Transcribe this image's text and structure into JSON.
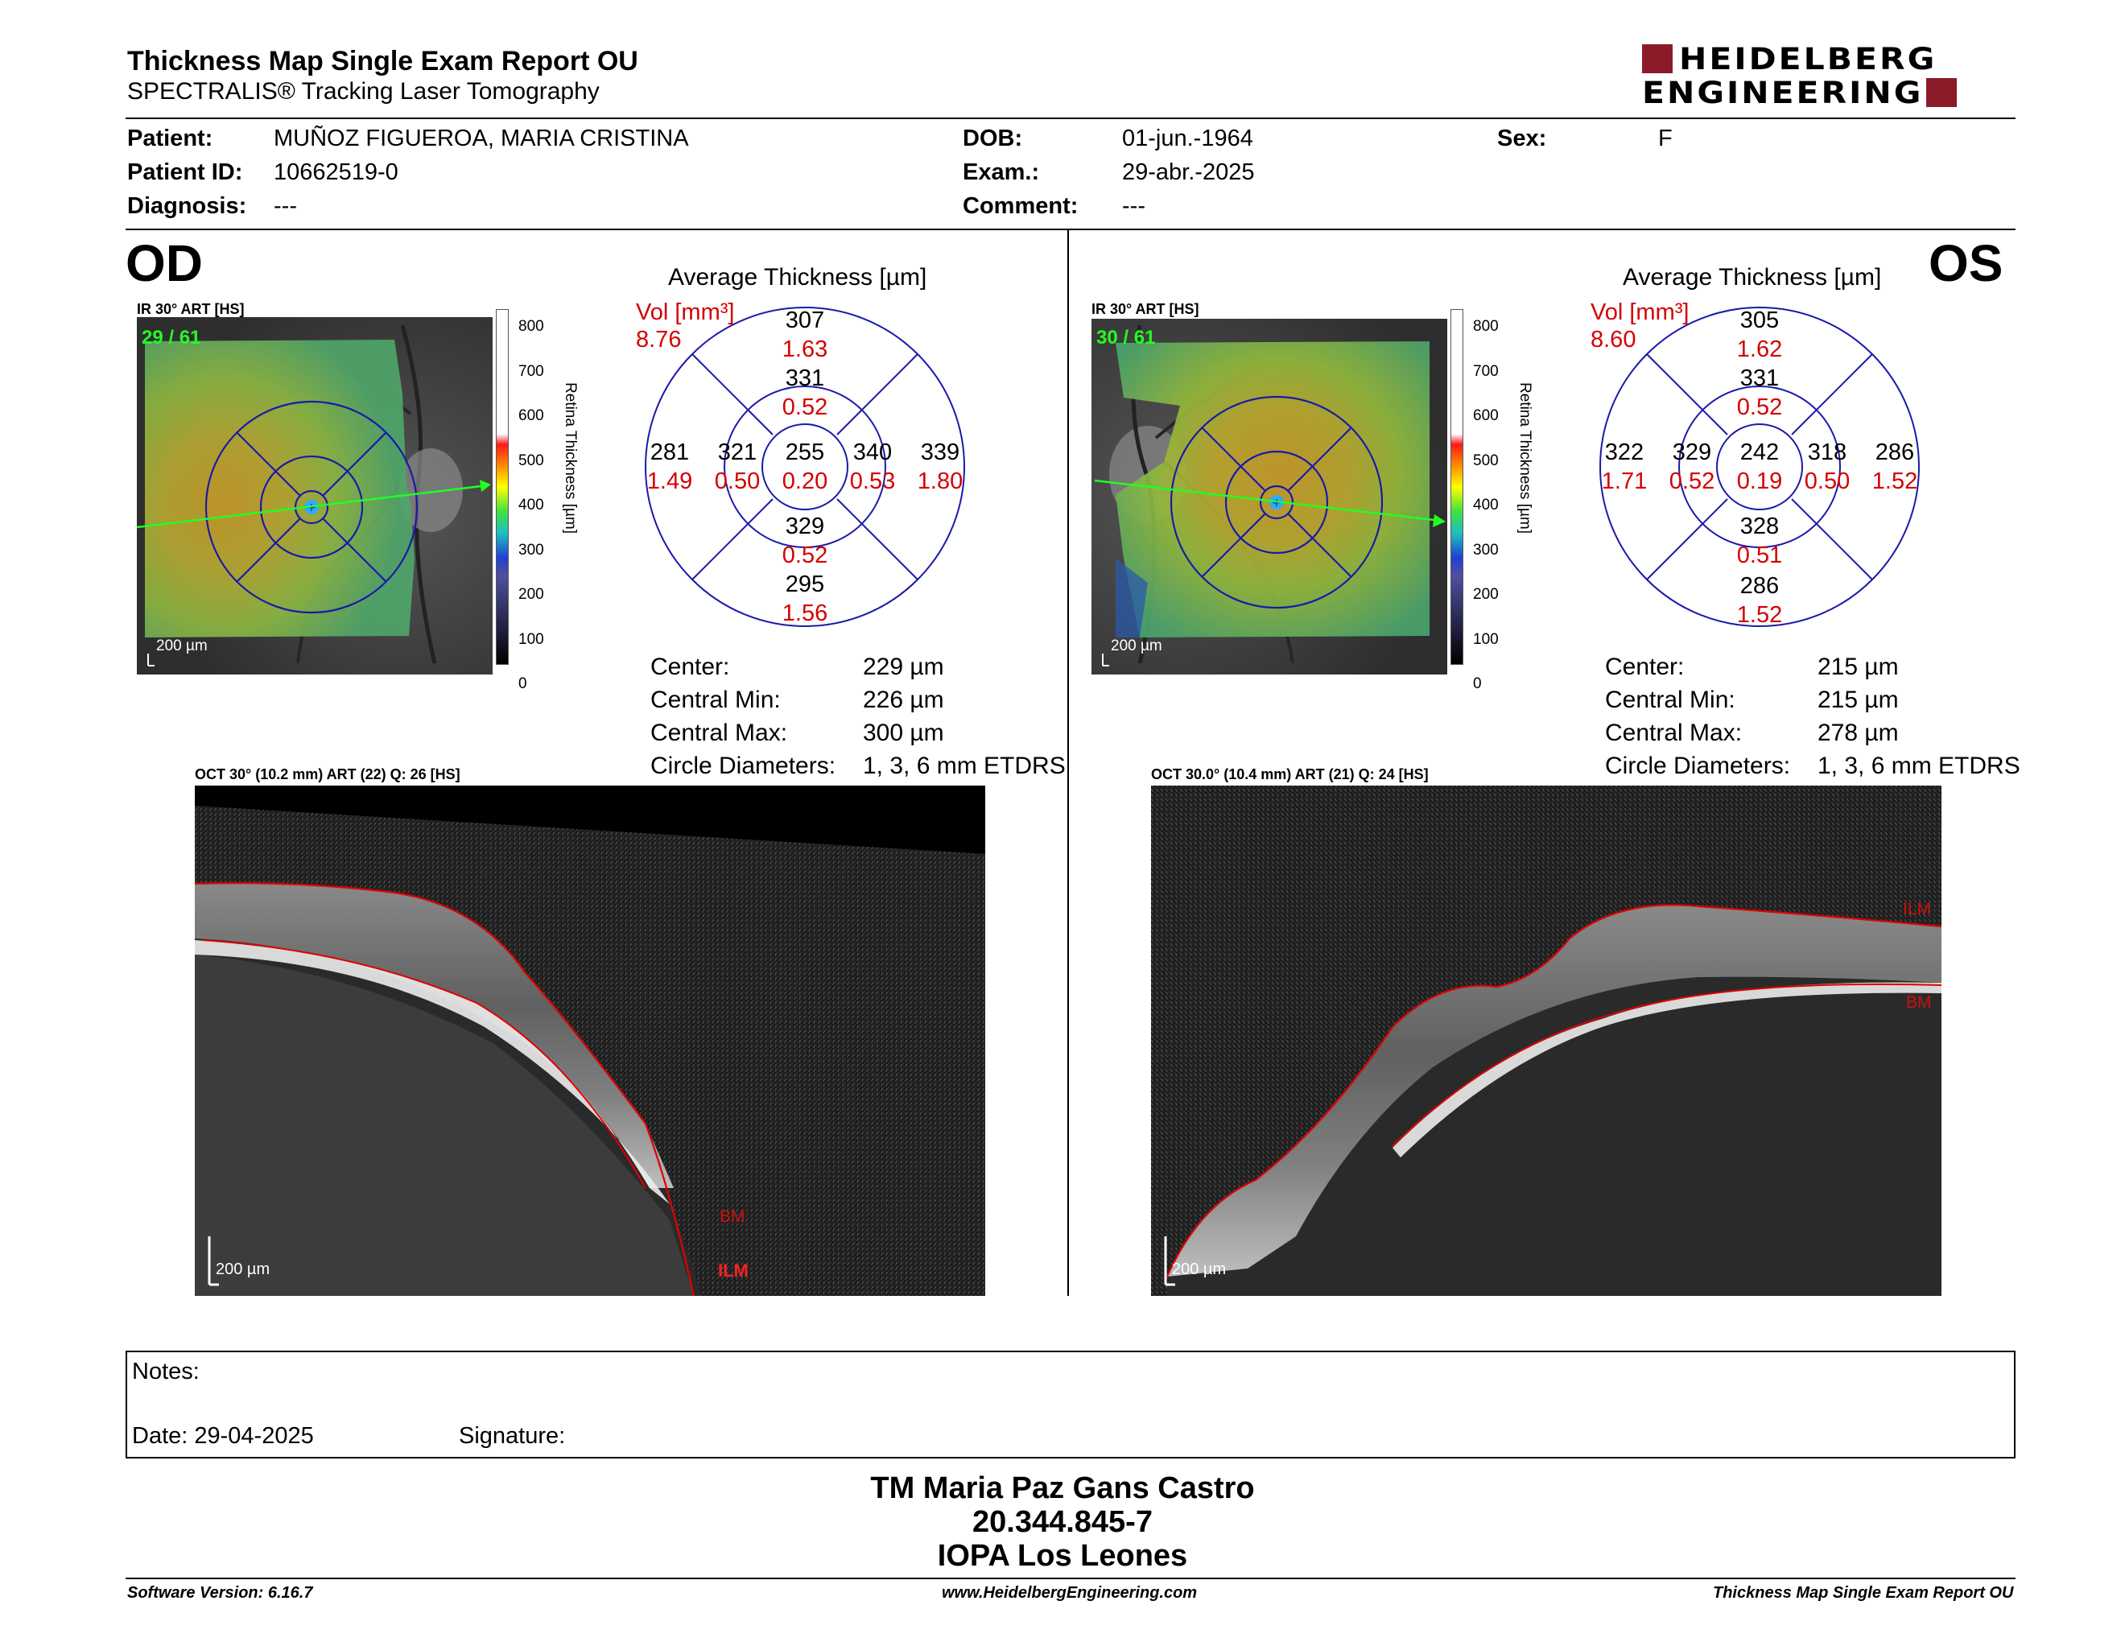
{
  "header": {
    "title": "Thickness Map Single Exam Report OU",
    "subtitle": "SPECTRALIS® Tracking Laser Tomography",
    "logo_line1": "HEIDELBERG",
    "logo_line2": "ENGINEERING"
  },
  "patient": {
    "patient_label": "Patient:",
    "patient_value": "MUÑOZ FIGUEROA, MARIA CRISTINA",
    "id_label": "Patient ID:",
    "id_value": "10662519-0",
    "diagnosis_label": "Diagnosis:",
    "diagnosis_value": "---",
    "dob_label": "DOB:",
    "dob_value": "01-jun.-1964",
    "exam_label": "Exam.:",
    "exam_value": "29-abr.-2025",
    "comment_label": "Comment:",
    "comment_value": "---",
    "sex_label": "Sex:",
    "sex_value": "F"
  },
  "colors": {
    "accent": "#8c1b2a",
    "etdrs_blue": "#1a1aa8",
    "vol_red": "#d40000",
    "segmentation_red": "#e00000",
    "scan_green": "#22ff22"
  },
  "scale_bar": {
    "ticks": [
      "800",
      "700",
      "600",
      "500",
      "400",
      "300",
      "200",
      "100",
      "0"
    ],
    "axis_label": "Retina  Thickness [µm]"
  },
  "od": {
    "eye_label": "OD",
    "ir_label": "IR 30° ART [HS]",
    "scan_counter": "29 / 61",
    "scale": "200 µm",
    "avg_title": "Average Thickness [µm]",
    "vol_label": "Vol [mm³]",
    "vol_total": "8.76",
    "grid": {
      "superior_outer": "307",
      "superior_outer_vol": "1.63",
      "superior_inner": "331",
      "superior_inner_vol": "0.52",
      "temporal_outer": "281",
      "temporal_outer_vol": "1.49",
      "temporal_inner": "321",
      "temporal_inner_vol": "0.50",
      "center": "255",
      "center_vol": "0.20",
      "nasal_inner": "340",
      "nasal_inner_vol": "0.53",
      "nasal_outer": "339",
      "nasal_outer_vol": "1.80",
      "inferior_inner": "329",
      "inferior_inner_vol": "0.52",
      "inferior_outer": "295",
      "inferior_outer_vol": "1.56"
    },
    "stats": {
      "center_label": "Center:",
      "center_value": "229 µm",
      "min_label": "Central Min:",
      "min_value": "226 µm",
      "max_label": "Central Max:",
      "max_value": "300 µm",
      "circle_label": "Circle Diameters:",
      "circle_value": "1, 3, 6 mm ETDRS"
    },
    "oct_label": "OCT 30° (10.2 mm) ART (22) Q: 26 [HS]",
    "oct_scale": "200 µm",
    "ilm": "ILM",
    "bm": "BM"
  },
  "os": {
    "eye_label": "OS",
    "ir_label": "IR 30° ART [HS]",
    "scan_counter": "30 / 61",
    "scale": "200 µm",
    "avg_title": "Average Thickness [µm]",
    "vol_label": "Vol [mm³]",
    "vol_total": "8.60",
    "grid": {
      "superior_outer": "305",
      "superior_outer_vol": "1.62",
      "superior_inner": "331",
      "superior_inner_vol": "0.52",
      "temporal_outer": "286",
      "temporal_outer_vol": "1.52",
      "temporal_inner": "318",
      "temporal_inner_vol": "0.50",
      "center": "242",
      "center_vol": "0.19",
      "nasal_inner": "329",
      "nasal_inner_vol": "0.52",
      "nasal_outer": "322",
      "nasal_outer_vol": "1.71",
      "inferior_inner": "328",
      "inferior_inner_vol": "0.51",
      "inferior_outer": "286",
      "inferior_outer_vol": "1.52"
    },
    "stats": {
      "center_label": "Center:",
      "center_value": "215 µm",
      "min_label": "Central Min:",
      "min_value": "215 µm",
      "max_label": "Central Max:",
      "max_value": "278 µm",
      "circle_label": "Circle Diameters:",
      "circle_value": "1, 3, 6 mm ETDRS"
    },
    "oct_label": "OCT 30.0° (10.4 mm) ART (21) Q: 24 [HS]",
    "oct_scale": "200 µm",
    "ilm": "ILM",
    "bm": "BM"
  },
  "notes": {
    "notes_label": "Notes:",
    "date_label": "Date: 29-04-2025",
    "signature_label": "Signature:"
  },
  "signer": {
    "name": "TM Maria Paz Gans Castro",
    "id": "20.344.845-7",
    "institution": "IOPA Los Leones"
  },
  "footer": {
    "software": "Software Version: 6.16.7",
    "website": "www.HeidelbergEngineering.com",
    "report_name": "Thickness Map Single Exam Report OU"
  }
}
